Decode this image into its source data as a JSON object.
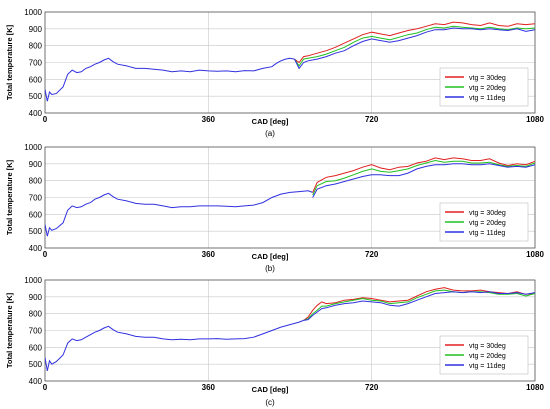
{
  "chart_data": [
    {
      "type": "line",
      "panel_label": "(a)",
      "xlabel": "CAD [deg]",
      "ylabel": "Total temperature [K]",
      "xlim": [
        0,
        1080
      ],
      "ylim": [
        400,
        1000
      ],
      "xticks": [
        0,
        360,
        720,
        1080
      ],
      "yticks": [
        400,
        500,
        600,
        700,
        800,
        900,
        1000
      ],
      "grid": true,
      "legend_position": "bottom-right",
      "common_x": [
        0,
        5,
        10,
        15,
        25,
        40,
        50,
        60,
        70,
        80,
        90,
        100,
        110,
        120,
        130,
        140,
        150,
        160,
        180,
        200,
        220,
        240,
        260,
        280,
        300,
        320,
        340,
        360,
        380,
        400,
        420,
        440,
        460,
        480,
        500,
        510,
        520,
        530,
        540,
        550
      ],
      "common_y": [
        540,
        470,
        525,
        510,
        515,
        555,
        630,
        655,
        640,
        645,
        665,
        675,
        690,
        700,
        715,
        725,
        705,
        690,
        680,
        665,
        665,
        660,
        655,
        645,
        650,
        645,
        655,
        650,
        648,
        650,
        645,
        652,
        650,
        665,
        675,
        695,
        710,
        720,
        725,
        720
      ],
      "series": [
        {
          "name": "vtg = 30deg",
          "color": "#e02020",
          "x": [
            550,
            560,
            570,
            580,
            600,
            620,
            640,
            660,
            680,
            700,
            720,
            740,
            760,
            780,
            800,
            820,
            840,
            860,
            880,
            900,
            920,
            940,
            960,
            980,
            1000,
            1020,
            1040,
            1060,
            1080
          ],
          "y": [
            720,
            700,
            735,
            740,
            755,
            770,
            790,
            815,
            840,
            865,
            880,
            870,
            860,
            875,
            890,
            900,
            915,
            930,
            925,
            940,
            935,
            925,
            920,
            935,
            920,
            915,
            930,
            925,
            930
          ]
        },
        {
          "name": "vtg = 20deg",
          "color": "#20c020",
          "x": [
            550,
            560,
            570,
            580,
            600,
            620,
            640,
            660,
            680,
            700,
            720,
            740,
            760,
            780,
            800,
            820,
            840,
            860,
            880,
            900,
            920,
            940,
            960,
            980,
            1000,
            1020,
            1040,
            1060,
            1080
          ],
          "y": [
            720,
            680,
            720,
            725,
            735,
            750,
            770,
            790,
            820,
            845,
            855,
            845,
            835,
            850,
            865,
            875,
            895,
            910,
            905,
            915,
            910,
            905,
            900,
            910,
            900,
            895,
            905,
            900,
            905
          ]
        },
        {
          "name": "vtg = 11deg",
          "color": "#3030e0",
          "x": [
            550,
            560,
            570,
            580,
            600,
            620,
            640,
            660,
            680,
            700,
            720,
            740,
            760,
            780,
            800,
            820,
            840,
            860,
            880,
            900,
            920,
            940,
            960,
            980,
            1000,
            1020,
            1040,
            1060,
            1080
          ],
          "y": [
            720,
            665,
            700,
            710,
            720,
            735,
            755,
            770,
            800,
            825,
            840,
            830,
            820,
            830,
            845,
            860,
            880,
            895,
            895,
            905,
            900,
            900,
            895,
            900,
            895,
            890,
            900,
            885,
            895
          ]
        }
      ]
    },
    {
      "type": "line",
      "panel_label": "(b)",
      "xlabel": "CAD [deg]",
      "ylabel": "Total temperature [K]",
      "xlim": [
        0,
        1080
      ],
      "ylim": [
        400,
        1000
      ],
      "xticks": [
        0,
        360,
        720,
        1080
      ],
      "yticks": [
        400,
        500,
        600,
        700,
        800,
        900,
        1000
      ],
      "grid": true,
      "legend_position": "bottom-right",
      "common_x": [
        0,
        5,
        10,
        15,
        25,
        40,
        50,
        60,
        70,
        80,
        90,
        100,
        110,
        120,
        130,
        140,
        150,
        160,
        180,
        200,
        220,
        240,
        260,
        280,
        300,
        320,
        340,
        360,
        380,
        400,
        420,
        440,
        460,
        480,
        500,
        520,
        540,
        560,
        580,
        590
      ],
      "common_y": [
        540,
        470,
        520,
        505,
        515,
        550,
        625,
        650,
        640,
        645,
        660,
        670,
        690,
        700,
        715,
        725,
        705,
        690,
        680,
        665,
        660,
        660,
        650,
        640,
        645,
        645,
        650,
        650,
        650,
        648,
        645,
        650,
        655,
        670,
        700,
        720,
        730,
        735,
        740,
        730
      ],
      "series": [
        {
          "name": "vtg = 30deg",
          "color": "#e02020",
          "x": [
            590,
            600,
            620,
            640,
            660,
            680,
            700,
            720,
            740,
            760,
            780,
            800,
            820,
            840,
            860,
            880,
            900,
            920,
            940,
            960,
            980,
            1000,
            1020,
            1040,
            1060,
            1080
          ],
          "y": [
            730,
            790,
            820,
            830,
            845,
            860,
            880,
            895,
            875,
            865,
            880,
            885,
            905,
            915,
            935,
            925,
            935,
            930,
            920,
            920,
            930,
            905,
            890,
            900,
            895,
            915
          ]
        },
        {
          "name": "vtg = 20deg",
          "color": "#20c020",
          "x": [
            590,
            600,
            620,
            640,
            660,
            680,
            700,
            720,
            740,
            760,
            780,
            800,
            820,
            840,
            860,
            880,
            900,
            920,
            940,
            960,
            980,
            1000,
            1020,
            1040,
            1060,
            1080
          ],
          "y": [
            715,
            770,
            795,
            800,
            815,
            835,
            855,
            870,
            855,
            850,
            860,
            870,
            890,
            905,
            920,
            910,
            915,
            915,
            905,
            905,
            910,
            895,
            885,
            890,
            885,
            905
          ]
        },
        {
          "name": "vtg = 11deg",
          "color": "#3030e0",
          "x": [
            590,
            600,
            620,
            640,
            660,
            680,
            700,
            720,
            740,
            760,
            780,
            800,
            820,
            840,
            860,
            880,
            900,
            920,
            940,
            960,
            980,
            1000,
            1020,
            1040,
            1060,
            1080
          ],
          "y": [
            700,
            750,
            770,
            780,
            795,
            810,
            825,
            835,
            835,
            830,
            830,
            845,
            870,
            885,
            895,
            895,
            900,
            900,
            895,
            895,
            900,
            890,
            880,
            885,
            880,
            895
          ]
        }
      ]
    },
    {
      "type": "line",
      "panel_label": "(c)",
      "xlabel": "CAD [deg]",
      "ylabel": "Total temperature [K]",
      "xlim": [
        0,
        1080
      ],
      "ylim": [
        400,
        1000
      ],
      "xticks": [
        0,
        360,
        720,
        1080
      ],
      "yticks": [
        400,
        500,
        600,
        700,
        800,
        900,
        1000
      ],
      "grid": true,
      "legend_position": "bottom-right",
      "common_x": [
        0,
        5,
        10,
        15,
        25,
        40,
        50,
        60,
        70,
        80,
        90,
        100,
        110,
        120,
        130,
        140,
        150,
        160,
        180,
        200,
        220,
        240,
        260,
        280,
        300,
        320,
        340,
        360,
        380,
        400,
        420,
        440,
        460,
        480,
        500,
        520,
        540,
        560,
        570
      ],
      "common_y": [
        540,
        460,
        520,
        500,
        515,
        555,
        625,
        650,
        640,
        645,
        660,
        675,
        690,
        700,
        715,
        725,
        705,
        690,
        680,
        665,
        660,
        660,
        650,
        645,
        648,
        645,
        650,
        650,
        652,
        648,
        650,
        652,
        660,
        680,
        700,
        720,
        735,
        750,
        760
      ],
      "series": [
        {
          "name": "vtg = 30deg",
          "color": "#e02020",
          "x": [
            570,
            580,
            590,
            600,
            610,
            620,
            640,
            660,
            680,
            700,
            720,
            740,
            760,
            780,
            800,
            820,
            840,
            860,
            880,
            900,
            920,
            940,
            960,
            980,
            1000,
            1020,
            1040,
            1060,
            1080
          ],
          "y": [
            760,
            780,
            820,
            850,
            870,
            860,
            865,
            880,
            885,
            895,
            890,
            880,
            870,
            875,
            880,
            905,
            930,
            945,
            955,
            940,
            935,
            935,
            940,
            930,
            925,
            920,
            930,
            915,
            920
          ]
        },
        {
          "name": "vtg = 20deg",
          "color": "#20c020",
          "x": [
            570,
            580,
            590,
            600,
            610,
            620,
            640,
            660,
            680,
            700,
            720,
            740,
            760,
            780,
            800,
            820,
            840,
            860,
            880,
            900,
            920,
            940,
            960,
            980,
            1000,
            1020,
            1040,
            1060,
            1080
          ],
          "y": [
            760,
            770,
            800,
            820,
            845,
            845,
            860,
            870,
            880,
            890,
            880,
            875,
            860,
            865,
            870,
            895,
            915,
            935,
            940,
            930,
            925,
            930,
            930,
            925,
            915,
            915,
            920,
            905,
            920
          ]
        },
        {
          "name": "vtg = 11deg",
          "color": "#3030e0",
          "x": [
            570,
            580,
            590,
            600,
            610,
            620,
            640,
            660,
            680,
            700,
            720,
            740,
            760,
            780,
            800,
            820,
            840,
            860,
            880,
            900,
            920,
            940,
            960,
            980,
            1000,
            1020,
            1040,
            1060,
            1080
          ],
          "y": [
            760,
            765,
            790,
            810,
            830,
            835,
            850,
            860,
            865,
            875,
            870,
            865,
            850,
            845,
            860,
            880,
            900,
            920,
            925,
            930,
            925,
            930,
            925,
            930,
            920,
            920,
            925,
            915,
            925
          ]
        }
      ]
    }
  ]
}
